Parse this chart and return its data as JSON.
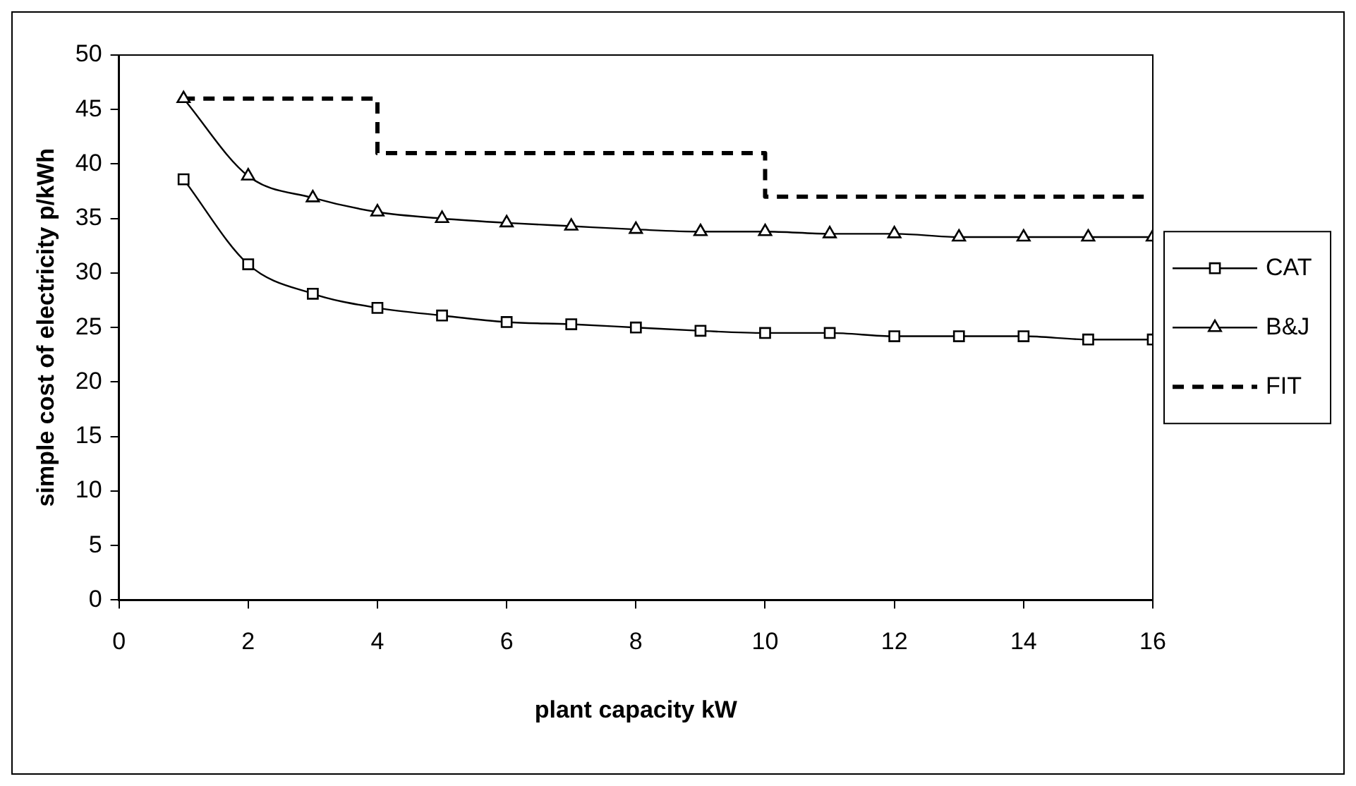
{
  "chart_data": {
    "type": "line",
    "xlabel": "plant capacity kW",
    "ylabel": "simple cost of electricity p/kWh",
    "x": [
      1,
      2,
      3,
      4,
      5,
      6,
      7,
      8,
      9,
      10,
      11,
      12,
      13,
      14,
      15,
      16
    ],
    "xlim": [
      0,
      16
    ],
    "xticks": [
      0,
      2,
      4,
      6,
      8,
      10,
      12,
      14,
      16
    ],
    "ylim": [
      0,
      50
    ],
    "yticks": [
      0,
      5,
      10,
      15,
      20,
      25,
      30,
      35,
      40,
      45,
      50
    ],
    "grid": false,
    "legend": "right",
    "series": [
      {
        "name": "CAT",
        "color": "#000000",
        "marker": "square",
        "line_style": "solid",
        "values": [
          38.6,
          30.8,
          28.1,
          26.8,
          26.1,
          25.5,
          25.3,
          25.0,
          24.7,
          24.5,
          24.5,
          24.2,
          24.2,
          24.2,
          23.9,
          23.9
        ]
      },
      {
        "name": "B&J",
        "color": "#000000",
        "marker": "triangle",
        "line_style": "solid",
        "values": [
          46.0,
          38.9,
          36.9,
          35.6,
          35.0,
          34.6,
          34.3,
          34.0,
          33.8,
          33.8,
          33.6,
          33.6,
          33.3,
          33.3,
          33.3,
          33.3
        ]
      },
      {
        "name": "FIT",
        "type": "step",
        "color": "#000000",
        "marker": "none",
        "line_style": "dashed",
        "x": [
          1,
          4,
          10,
          16
        ],
        "values": [
          46,
          41,
          37,
          37
        ]
      }
    ]
  }
}
